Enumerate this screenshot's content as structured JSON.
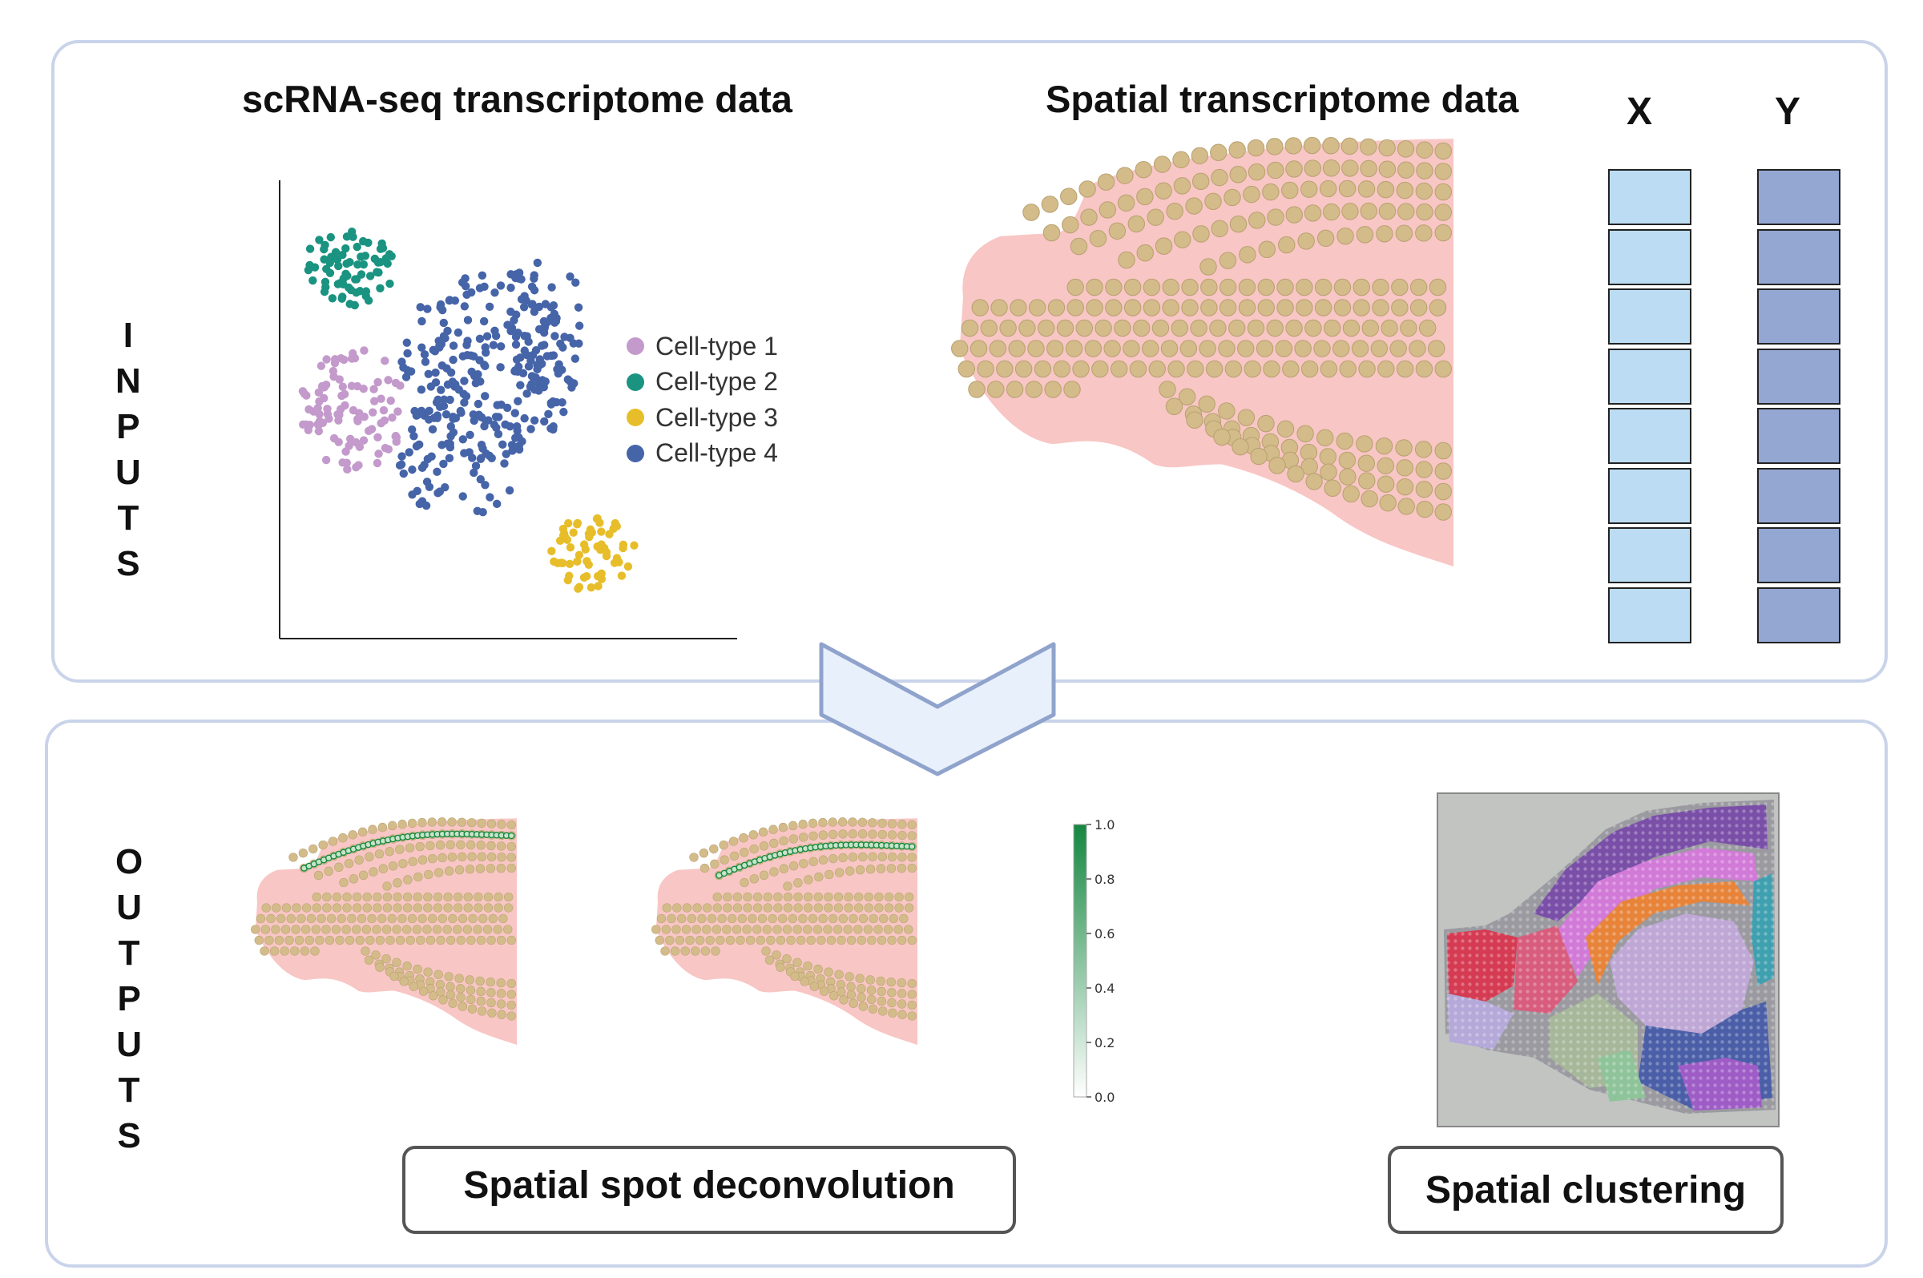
{
  "inputs": {
    "label": [
      "I",
      "N",
      "P",
      "U",
      "T",
      "S"
    ],
    "scrna_title": "scRNA-seq transcriptome data",
    "spatial_title": "Spatial transcriptome data",
    "legend": [
      {
        "label": "Cell-type 1",
        "color": "#c39acb"
      },
      {
        "label": "Cell-type 2",
        "color": "#1a9381"
      },
      {
        "label": "Cell-type 3",
        "color": "#e7be2a"
      },
      {
        "label": "Cell-type 4",
        "color": "#4664a8"
      }
    ],
    "coords": {
      "x_label": "X",
      "y_label": "Y",
      "x_color": "#bcdcf3",
      "y_color": "#94a7d3",
      "rows": 8
    }
  },
  "outputs": {
    "label": [
      "O",
      "U",
      "T",
      "P",
      "U",
      "T",
      "S"
    ],
    "deconvolution_label": "Spatial spot deconvolution",
    "clustering_label": "Spatial clustering",
    "colorbar": {
      "ticks": [
        "1.0",
        "0.8",
        "0.6",
        "0.4",
        "0.2",
        "0.0"
      ],
      "color_high": "#14873f",
      "color_low": "#ffffff"
    }
  },
  "colors": {
    "panel_border": "#c9d3ea",
    "arrow_fill": "#e8f0fb",
    "arrow_stroke": "#8fa3cc",
    "tissue": "#f8c6c4",
    "spot": "#d3bc8a"
  }
}
